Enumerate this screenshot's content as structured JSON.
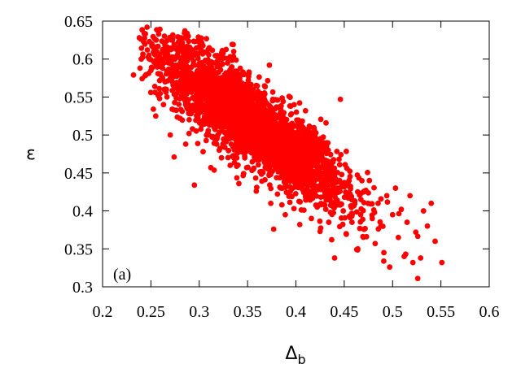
{
  "chart_data": {
    "type": "scatter",
    "title": "",
    "xlabel": "Δ",
    "xlabel_sub": "b",
    "ylabel": "ε",
    "panel_label": "(a)",
    "xlim": [
      0.2,
      0.6
    ],
    "ylim": [
      0.3,
      0.65
    ],
    "xticks": [
      "0.2",
      "0.25",
      "0.3",
      "0.35",
      "0.4",
      "0.45",
      "0.5",
      "0.55",
      "0.6"
    ],
    "yticks": [
      "0.3",
      "0.35",
      "0.4",
      "0.45",
      "0.5",
      "0.55",
      "0.6",
      "0.65"
    ],
    "grid": false,
    "marker_color": "#ff0000",
    "series": [
      {
        "points": [
          [
            0.232,
            0.579
          ],
          [
            0.238,
            0.628
          ],
          [
            0.24,
            0.6
          ],
          [
            0.243,
            0.634
          ],
          [
            0.244,
            0.578
          ],
          [
            0.246,
            0.642
          ],
          [
            0.248,
            0.605
          ],
          [
            0.25,
            0.585
          ],
          [
            0.251,
            0.62
          ],
          [
            0.253,
            0.597
          ],
          [
            0.254,
            0.564
          ],
          [
            0.255,
            0.525
          ],
          [
            0.256,
            0.61
          ],
          [
            0.258,
            0.633
          ],
          [
            0.259,
            0.548
          ],
          [
            0.26,
            0.59
          ],
          [
            0.262,
            0.575
          ],
          [
            0.263,
            0.54
          ],
          [
            0.265,
            0.612
          ],
          [
            0.266,
            0.56
          ],
          [
            0.268,
            0.595
          ],
          [
            0.27,
            0.5
          ],
          [
            0.271,
            0.583
          ],
          [
            0.272,
            0.534
          ],
          [
            0.274,
            0.471
          ],
          [
            0.275,
            0.6
          ],
          [
            0.277,
            0.555
          ],
          [
            0.278,
            0.61
          ],
          [
            0.28,
            0.522
          ],
          [
            0.281,
            0.572
          ],
          [
            0.283,
            0.591
          ],
          [
            0.285,
            0.546
          ],
          [
            0.286,
            0.488
          ],
          [
            0.288,
            0.603
          ],
          [
            0.29,
            0.528
          ],
          [
            0.291,
            0.566
          ],
          [
            0.293,
            0.508
          ],
          [
            0.295,
            0.434
          ],
          [
            0.296,
            0.58
          ],
          [
            0.298,
            0.54
          ],
          [
            0.3,
            0.594
          ],
          [
            0.302,
            0.515
          ],
          [
            0.304,
            0.478
          ],
          [
            0.306,
            0.563
          ],
          [
            0.308,
            0.529
          ],
          [
            0.31,
            0.5
          ],
          [
            0.312,
            0.457
          ],
          [
            0.314,
            0.549
          ],
          [
            0.316,
            0.572
          ],
          [
            0.318,
            0.488
          ],
          [
            0.32,
            0.52
          ],
          [
            0.323,
            0.47
          ],
          [
            0.326,
            0.545
          ],
          [
            0.329,
            0.503
          ],
          [
            0.332,
            0.46
          ],
          [
            0.335,
            0.53
          ],
          [
            0.338,
            0.488
          ],
          [
            0.341,
            0.436
          ],
          [
            0.344,
            0.515
          ],
          [
            0.347,
            0.472
          ],
          [
            0.35,
            0.54
          ],
          [
            0.353,
            0.498
          ],
          [
            0.356,
            0.455
          ],
          [
            0.359,
            0.426
          ],
          [
            0.362,
            0.51
          ],
          [
            0.365,
            0.47
          ],
          [
            0.368,
            0.441
          ],
          [
            0.371,
            0.49
          ],
          [
            0.374,
            0.41
          ],
          [
            0.377,
            0.376
          ],
          [
            0.38,
            0.46
          ],
          [
            0.383,
            0.505
          ],
          [
            0.386,
            0.43
          ],
          [
            0.389,
            0.395
          ],
          [
            0.392,
            0.47
          ],
          [
            0.395,
            0.442
          ],
          [
            0.398,
            0.403
          ],
          [
            0.401,
            0.48
          ],
          [
            0.404,
            0.382
          ],
          [
            0.407,
            0.455
          ],
          [
            0.41,
            0.42
          ],
          [
            0.413,
            0.46
          ],
          [
            0.416,
            0.39
          ],
          [
            0.419,
            0.44
          ],
          [
            0.422,
            0.405
          ],
          [
            0.425,
            0.373
          ],
          [
            0.428,
            0.45
          ],
          [
            0.431,
            0.42
          ],
          [
            0.434,
            0.385
          ],
          [
            0.437,
            0.362
          ],
          [
            0.44,
            0.338
          ],
          [
            0.443,
            0.43
          ],
          [
            0.446,
            0.547
          ],
          [
            0.449,
            0.4
          ],
          [
            0.452,
            0.37
          ],
          [
            0.455,
            0.44
          ],
          [
            0.458,
            0.385
          ],
          [
            0.461,
            0.413
          ],
          [
            0.464,
            0.35
          ],
          [
            0.467,
            0.395
          ],
          [
            0.47,
            0.425
          ],
          [
            0.473,
            0.366
          ],
          [
            0.476,
            0.44
          ],
          [
            0.479,
            0.39
          ],
          [
            0.482,
            0.357
          ],
          [
            0.485,
            0.41
          ],
          [
            0.488,
            0.38
          ],
          [
            0.491,
            0.345
          ],
          [
            0.494,
            0.42
          ],
          [
            0.497,
            0.326
          ],
          [
            0.5,
            0.395
          ],
          [
            0.503,
            0.43
          ],
          [
            0.506,
            0.365
          ],
          [
            0.509,
            0.402
          ],
          [
            0.512,
            0.34
          ],
          [
            0.515,
            0.385
          ],
          [
            0.518,
            0.42
          ],
          [
            0.521,
            0.332
          ],
          [
            0.524,
            0.372
          ],
          [
            0.526,
            0.311
          ],
          [
            0.529,
            0.338
          ],
          [
            0.532,
            0.4
          ],
          [
            0.536,
            0.38
          ],
          [
            0.54,
            0.41
          ],
          [
            0.544,
            0.36
          ],
          [
            0.551,
            0.332
          ]
        ]
      }
    ]
  }
}
